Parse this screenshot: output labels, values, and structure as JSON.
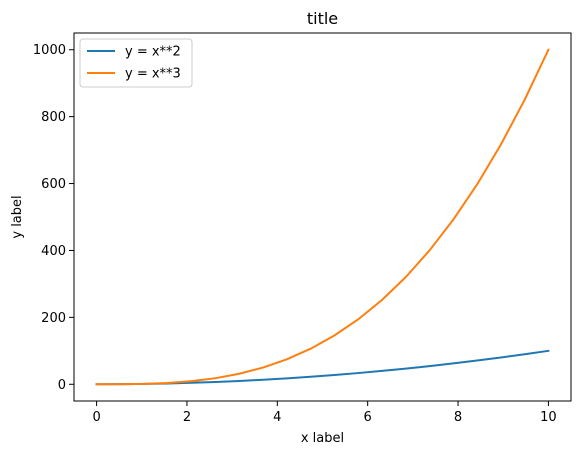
{
  "chart_data": {
    "type": "line",
    "title": "title",
    "xlabel": "x label",
    "ylabel": "y label",
    "xlim": [
      -0.5,
      10.5
    ],
    "ylim": [
      -50,
      1050
    ],
    "xticks": [
      0,
      2,
      4,
      6,
      8,
      10
    ],
    "yticks": [
      0,
      200,
      400,
      600,
      800,
      1000
    ],
    "xtick_labels": [
      "0",
      "2",
      "4",
      "6",
      "8",
      "10"
    ],
    "ytick_labels": [
      "0",
      "200",
      "400",
      "600",
      "800",
      "1000"
    ],
    "grid": false,
    "legend_position": "top-left",
    "x": [
      0,
      0.5263,
      1.0526,
      1.5789,
      2.1053,
      2.6316,
      3.1579,
      3.6842,
      4.2105,
      4.7368,
      5.2632,
      5.7895,
      6.3158,
      6.8421,
      7.3684,
      7.8947,
      8.4211,
      8.9474,
      9.4737,
      10
    ],
    "series": [
      {
        "name": "y = x**2",
        "color": "#1f77b4",
        "values": [
          0,
          0.277,
          1.108,
          2.493,
          4.432,
          6.925,
          9.972,
          13.573,
          17.729,
          22.438,
          27.701,
          33.518,
          39.889,
          46.814,
          54.294,
          62.327,
          70.914,
          80.055,
          89.751,
          100
        ]
      },
      {
        "name": "y = x**3",
        "color": "#ff7f0e",
        "values": [
          0,
          0.146,
          1.166,
          3.936,
          9.331,
          18.224,
          31.491,
          50.007,
          74.646,
          106.283,
          145.794,
          194.051,
          251.931,
          320.307,
          400.058,
          492.055,
          597.172,
          716.289,
          850.272,
          1000
        ]
      }
    ]
  }
}
